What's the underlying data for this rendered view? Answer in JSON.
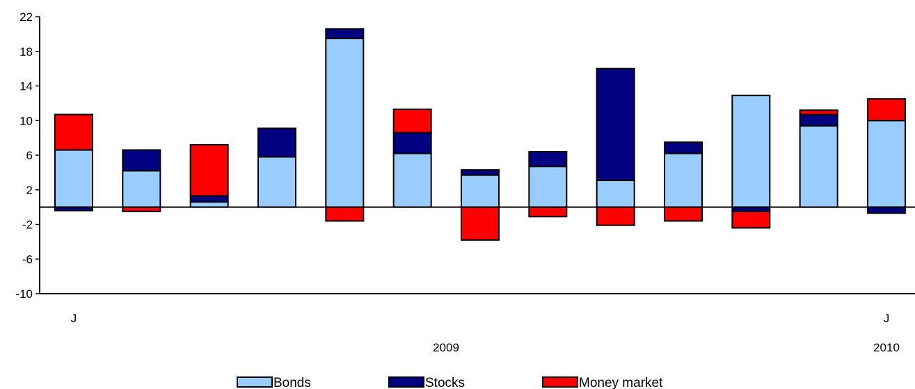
{
  "chart_data": {
    "type": "bar",
    "stacked": true,
    "title": "",
    "xlabel": "",
    "ylabel": "",
    "ylim": [
      -10,
      22
    ],
    "yticks": [
      22,
      18,
      14,
      10,
      6,
      2,
      -2,
      -6,
      -10
    ],
    "ytick_labels": [
      "22",
      "18",
      "14",
      "10",
      "6",
      "2",
      "-2",
      "-6",
      "-10"
    ],
    "month_labels": [
      "J",
      "J"
    ],
    "year_labels": [
      "2009",
      "2010"
    ],
    "grid": false,
    "legend_position": "bottom",
    "colors": {
      "Bonds": "#99ccff",
      "Stocks": "#000080",
      "Money market": "#ff0000"
    },
    "series": [
      {
        "name": "Bonds",
        "values": [
          6.6,
          4.2,
          0.6,
          5.8,
          19.5,
          6.2,
          3.7,
          4.7,
          3.1,
          6.2,
          12.9,
          9.4,
          10.0
        ]
      },
      {
        "name": "Stocks",
        "values": [
          -0.4,
          2.4,
          0.7,
          3.3,
          1.1,
          2.4,
          0.6,
          1.7,
          12.9,
          1.3,
          -0.5,
          1.3,
          -0.7
        ]
      },
      {
        "name": "Money market",
        "values": [
          4.1,
          -0.5,
          5.9,
          0.0,
          -1.6,
          2.7,
          -3.8,
          -1.1,
          -2.1,
          -1.6,
          -1.9,
          0.5,
          2.5
        ]
      }
    ]
  }
}
